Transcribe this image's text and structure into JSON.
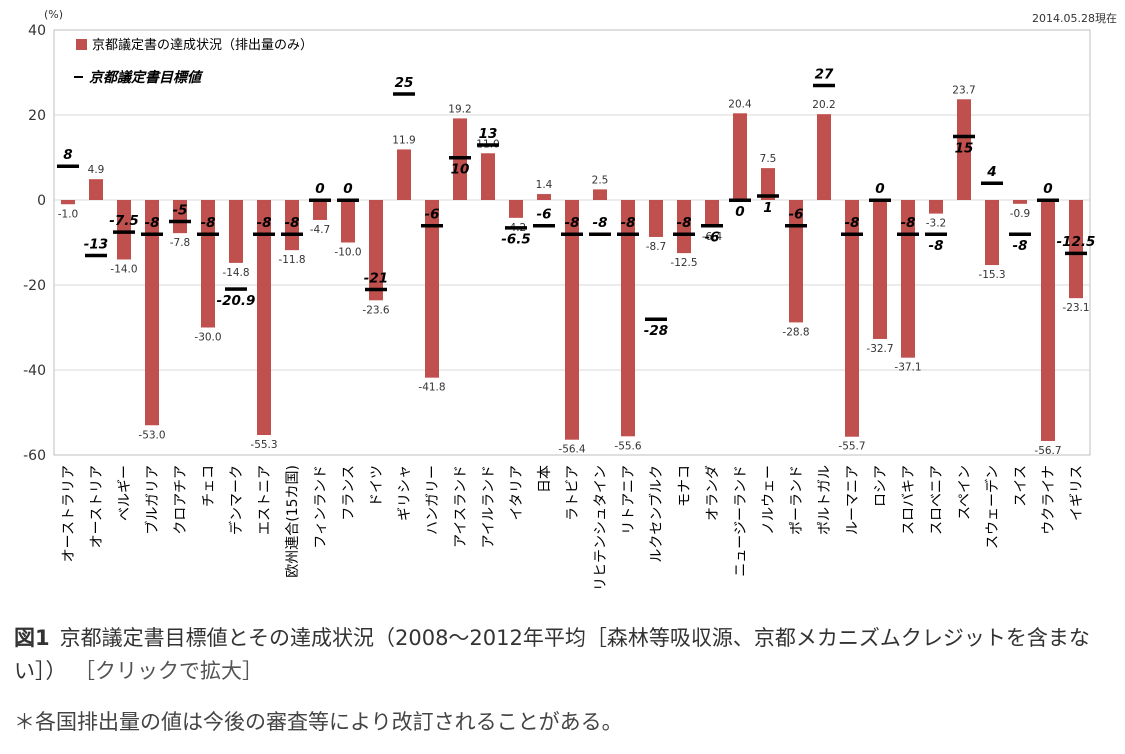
{
  "caption": {
    "label": "図1",
    "text": "京都議定書目標値とその達成状況（2008〜2012年平均［森林等吸収源、京都メカニズムクレジットを含まない］）",
    "link": "［クリックで拡大］"
  },
  "note": "＊各国排出量の値は今後の審査等により改訂されることがある。",
  "chart_data": {
    "type": "bar",
    "date": "2014.05.28現在",
    "unit": "(%)",
    "ylim": [
      -60,
      40
    ],
    "yticks": [
      40,
      20,
      0,
      -20,
      -40,
      -60
    ],
    "grid": true,
    "legend_position": "top-left",
    "colors": {
      "bar": "#c0504d",
      "target": "#000000",
      "grid": "#d9d9d9",
      "frame": "#bfbfbf"
    },
    "categories": [
      "オーストラリア",
      "オーストリア",
      "ベルギー",
      "ブルガリア",
      "クロアチア",
      "チェコ",
      "デンマーク",
      "エストニア",
      "欧州連合(15カ国)",
      "フィンランド",
      "フランス",
      "ドイツ",
      "ギリシャ",
      "ハンガリー",
      "アイスランド",
      "アイルランド",
      "イタリア",
      "日本",
      "ラトビア",
      "リヒテンシュタイン",
      "リトアニア",
      "ルクセンブルク",
      "モナコ",
      "オランダ",
      "ニュージーランド",
      "ノルウェー",
      "ポーランド",
      "ポルトガル",
      "ルーマニア",
      "ロシア",
      "スロバキア",
      "スロベニア",
      "スペイン",
      "スウェーデン",
      "スイス",
      "ウクライナ",
      "イギリス"
    ],
    "series": [
      {
        "name": "京都議定書の達成状況（排出量のみ）",
        "values": [
          -1.0,
          4.9,
          -14.0,
          -53.0,
          -7.8,
          -30.0,
          -14.8,
          -55.3,
          -11.8,
          -4.7,
          -10.0,
          -23.6,
          11.9,
          -41.8,
          19.2,
          11.0,
          -4.2,
          1.4,
          -56.4,
          2.5,
          -55.6,
          -8.7,
          -12.5,
          -6.4,
          20.4,
          7.5,
          -28.8,
          20.2,
          -55.7,
          -32.7,
          -37.1,
          -3.2,
          23.7,
          -15.3,
          -0.9,
          -56.7,
          -23.1
        ],
        "labels": [
          "-1.0",
          "4.9",
          "-14.0",
          "-53.0",
          "-7.8",
          "-30.0",
          "-14.8",
          "-55.3",
          "-11.8",
          "-4.7",
          "-10.0",
          "-23.6",
          "11.9",
          "-41.8",
          "19.2",
          "11.0",
          "-4.2",
          "1.4",
          "-56.4",
          "2.5",
          "-55.6",
          "-8.7",
          "-12.5",
          "-6.4",
          "20.4",
          "7.5",
          "-28.8",
          "20.2",
          "-55.7",
          "-32.7",
          "-37.1",
          "-3.2",
          "23.7",
          "-15.3",
          "-0.9",
          "-56.7",
          "-23.1"
        ]
      },
      {
        "name": "京都議定書目標値",
        "values": [
          8,
          -13,
          -7.5,
          -8,
          -5,
          -8,
          -20.9,
          -8,
          -8,
          0,
          0,
          -21,
          25,
          -6,
          10,
          13,
          -6.5,
          -6,
          -8,
          -8,
          -8,
          -28,
          -8,
          -6,
          0,
          1,
          -6,
          27,
          -8,
          0,
          -8,
          -8,
          15,
          4,
          -8,
          0,
          -12.5
        ],
        "labels": [
          "8",
          "-13",
          "-7.5",
          "-8",
          "-5",
          "-8",
          "-20.9",
          "-8",
          "-8",
          "0",
          "0",
          "-21",
          "25",
          "-6",
          "10",
          "13",
          "-6.5",
          "-6",
          "-8",
          "-8",
          "-8",
          "-28",
          "-8",
          "-6",
          "0",
          "1",
          "-6",
          "27",
          "-8",
          "0",
          "-8",
          "-8",
          "15",
          "4",
          "-8",
          "0",
          "-12.5"
        ]
      }
    ]
  }
}
